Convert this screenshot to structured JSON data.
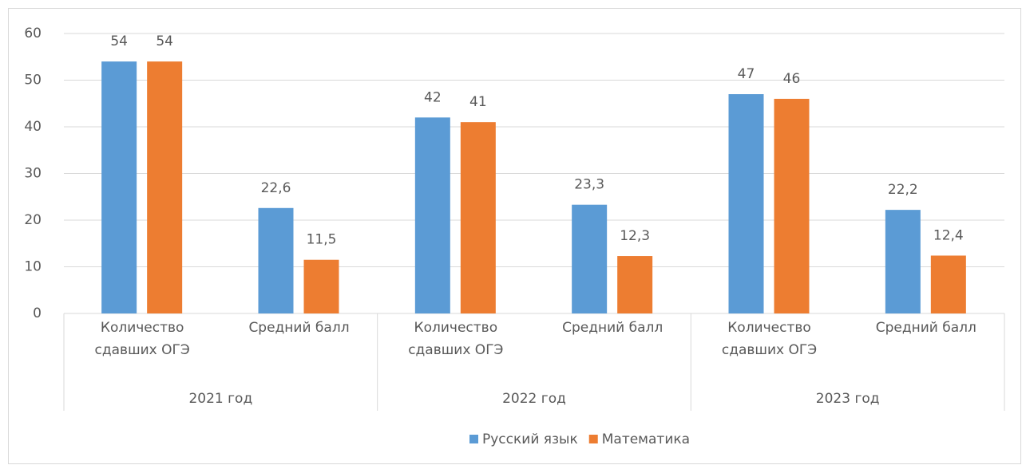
{
  "chart_data": {
    "type": "bar",
    "groups": [
      "2021 год",
      "2022 год",
      "2023 год"
    ],
    "categories": [
      "Количество сдавших ОГЭ",
      "Средний балл",
      "Количество сдавших ОГЭ",
      "Средний балл",
      "Количество сдавших ОГЭ",
      "Средний балл"
    ],
    "series": [
      {
        "name": "Русский язык",
        "color": "#5b9bd5",
        "values": [
          54,
          22.6,
          42,
          23.3,
          47,
          22.2
        ],
        "value_labels": [
          "54",
          "22,6",
          "42",
          "23,3",
          "47",
          "22,2"
        ]
      },
      {
        "name": "Математика",
        "color": "#ed7d31",
        "values": [
          54,
          11.5,
          41,
          12.3,
          46,
          12.4
        ],
        "value_labels": [
          "54",
          "11,5",
          "41",
          "12,3",
          "46",
          "12,4"
        ]
      }
    ],
    "ylim": [
      0,
      60
    ],
    "yticks": [
      0,
      10,
      20,
      30,
      40,
      50,
      60
    ],
    "grid": true,
    "legend": "bottom"
  }
}
